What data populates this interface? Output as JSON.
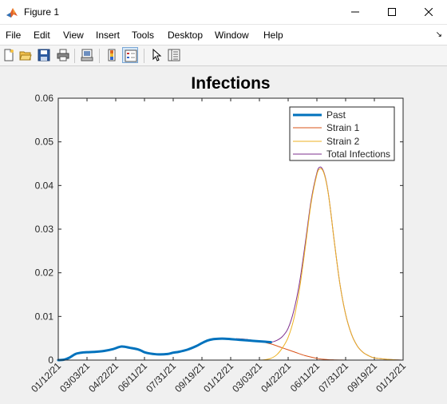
{
  "window": {
    "title": "Figure 1",
    "app_icon": "matlab-icon",
    "controls": [
      "minimize-icon",
      "maximize-icon",
      "close-icon"
    ]
  },
  "menu": {
    "items": [
      "File",
      "Edit",
      "View",
      "Insert",
      "Tools",
      "Desktop",
      "Window",
      "Help"
    ],
    "overflow_icon": "dock-arrow-icon"
  },
  "toolbar": {
    "buttons": [
      {
        "icon": "new-figure-icon",
        "active": false
      },
      {
        "icon": "open-file-icon",
        "active": false
      },
      {
        "icon": "save-icon",
        "active": false
      },
      {
        "icon": "print-icon",
        "active": false
      },
      {
        "icon": "link-plot-icon",
        "active": false
      },
      {
        "icon": "insert-colorbar-icon",
        "active": false
      },
      {
        "icon": "insert-legend-icon",
        "active": true
      },
      {
        "icon": "edit-plot-pointer-icon",
        "active": false
      },
      {
        "icon": "property-inspector-icon",
        "active": false
      }
    ]
  },
  "chart_data": {
    "type": "line",
    "title": "Infections",
    "xlabel": "",
    "ylabel": "",
    "x_ticks": [
      "01/12/21",
      "03/03/21",
      "04/22/21",
      "06/11/21",
      "07/31/21",
      "09/19/21",
      "01/12/21",
      "03/03/21",
      "04/22/21",
      "06/11/21",
      "07/31/21",
      "09/19/21",
      "01/12/21"
    ],
    "y_ticks": [
      "0",
      "0.01",
      "0.02",
      "0.03",
      "0.04",
      "0.05",
      "0.06"
    ],
    "xlim": [
      0,
      12
    ],
    "ylim": [
      0,
      0.06
    ],
    "grid": false,
    "legend_position": "top-right",
    "series": [
      {
        "name": "Past",
        "color": "#0072bd",
        "width": 3,
        "x": [
          0,
          0.2,
          0.4,
          0.6,
          0.8,
          1.0,
          1.3,
          1.6,
          1.9,
          2.2,
          2.5,
          2.8,
          3.0,
          3.2,
          3.5,
          3.8,
          4.0,
          4.2,
          4.5,
          4.8,
          5.0,
          5.2,
          5.4,
          5.6,
          5.8,
          6.0,
          6.2,
          6.4,
          6.6,
          6.8,
          7.0,
          7.2,
          7.4
        ],
        "y": [
          0.0,
          0.0001,
          0.0006,
          0.0014,
          0.0017,
          0.0018,
          0.0019,
          0.0021,
          0.0025,
          0.0031,
          0.0028,
          0.0024,
          0.0018,
          0.0015,
          0.0013,
          0.0014,
          0.0017,
          0.0019,
          0.0024,
          0.0032,
          0.0039,
          0.0045,
          0.0048,
          0.0049,
          0.0049,
          0.0048,
          0.0047,
          0.0046,
          0.0045,
          0.0044,
          0.0043,
          0.0042,
          0.0041
        ]
      },
      {
        "name": "Strain 1",
        "color": "#d95319",
        "width": 1,
        "x": [
          6.2,
          6.6,
          7.0,
          7.4,
          7.8,
          8.2,
          8.6,
          9.0,
          9.2,
          9.4,
          9.6,
          9.8,
          10.0,
          10.4,
          10.8,
          11.2,
          11.6,
          12.0
        ],
        "y": [
          0.0049,
          0.0047,
          0.0043,
          0.0037,
          0.0028,
          0.0019,
          0.001,
          0.0004,
          0.0002,
          0.0001,
          5e-05,
          2e-05,
          1e-05,
          0.0,
          0.0,
          0.0,
          0.0,
          0.0
        ]
      },
      {
        "name": "Strain 2",
        "color": "#edb120",
        "width": 1,
        "x": [
          6.2,
          6.6,
          7.0,
          7.2,
          7.4,
          7.6,
          7.8,
          8.0,
          8.2,
          8.4,
          8.6,
          8.8,
          9.0,
          9.1,
          9.2,
          9.3,
          9.4,
          9.5,
          9.6,
          9.8,
          10.0,
          10.2,
          10.4,
          10.6,
          10.8,
          11.0,
          11.4,
          11.8,
          12.0
        ],
        "y": [
          0.0,
          0.0,
          0.0,
          0.0001,
          0.0004,
          0.0012,
          0.0028,
          0.0052,
          0.0095,
          0.0165,
          0.026,
          0.036,
          0.0425,
          0.0438,
          0.0435,
          0.0415,
          0.038,
          0.033,
          0.0275,
          0.0175,
          0.0105,
          0.006,
          0.0033,
          0.0018,
          0.001,
          0.0005,
          0.0002,
          5e-05,
          0.0
        ]
      },
      {
        "name": "Total Infections",
        "color": "#7e2f8e",
        "width": 1,
        "x": [
          6.2,
          6.6,
          7.0,
          7.2,
          7.4,
          7.6,
          7.8,
          8.0,
          8.2,
          8.4,
          8.6,
          8.8,
          9.0,
          9.1,
          9.2,
          9.3,
          9.4,
          9.5,
          9.6,
          9.8,
          10.0,
          10.2,
          10.4,
          10.6,
          10.8,
          11.0,
          11.4,
          11.8,
          12.0
        ],
        "y": [
          0.0049,
          0.0047,
          0.0043,
          0.0041,
          0.0041,
          0.0045,
          0.0054,
          0.0073,
          0.0114,
          0.0179,
          0.027,
          0.0366,
          0.0429,
          0.0442,
          0.0437,
          0.0417,
          0.0381,
          0.033,
          0.0275,
          0.0175,
          0.0105,
          0.006,
          0.0033,
          0.0018,
          0.001,
          0.0005,
          0.0002,
          5e-05,
          0.0
        ]
      }
    ]
  }
}
